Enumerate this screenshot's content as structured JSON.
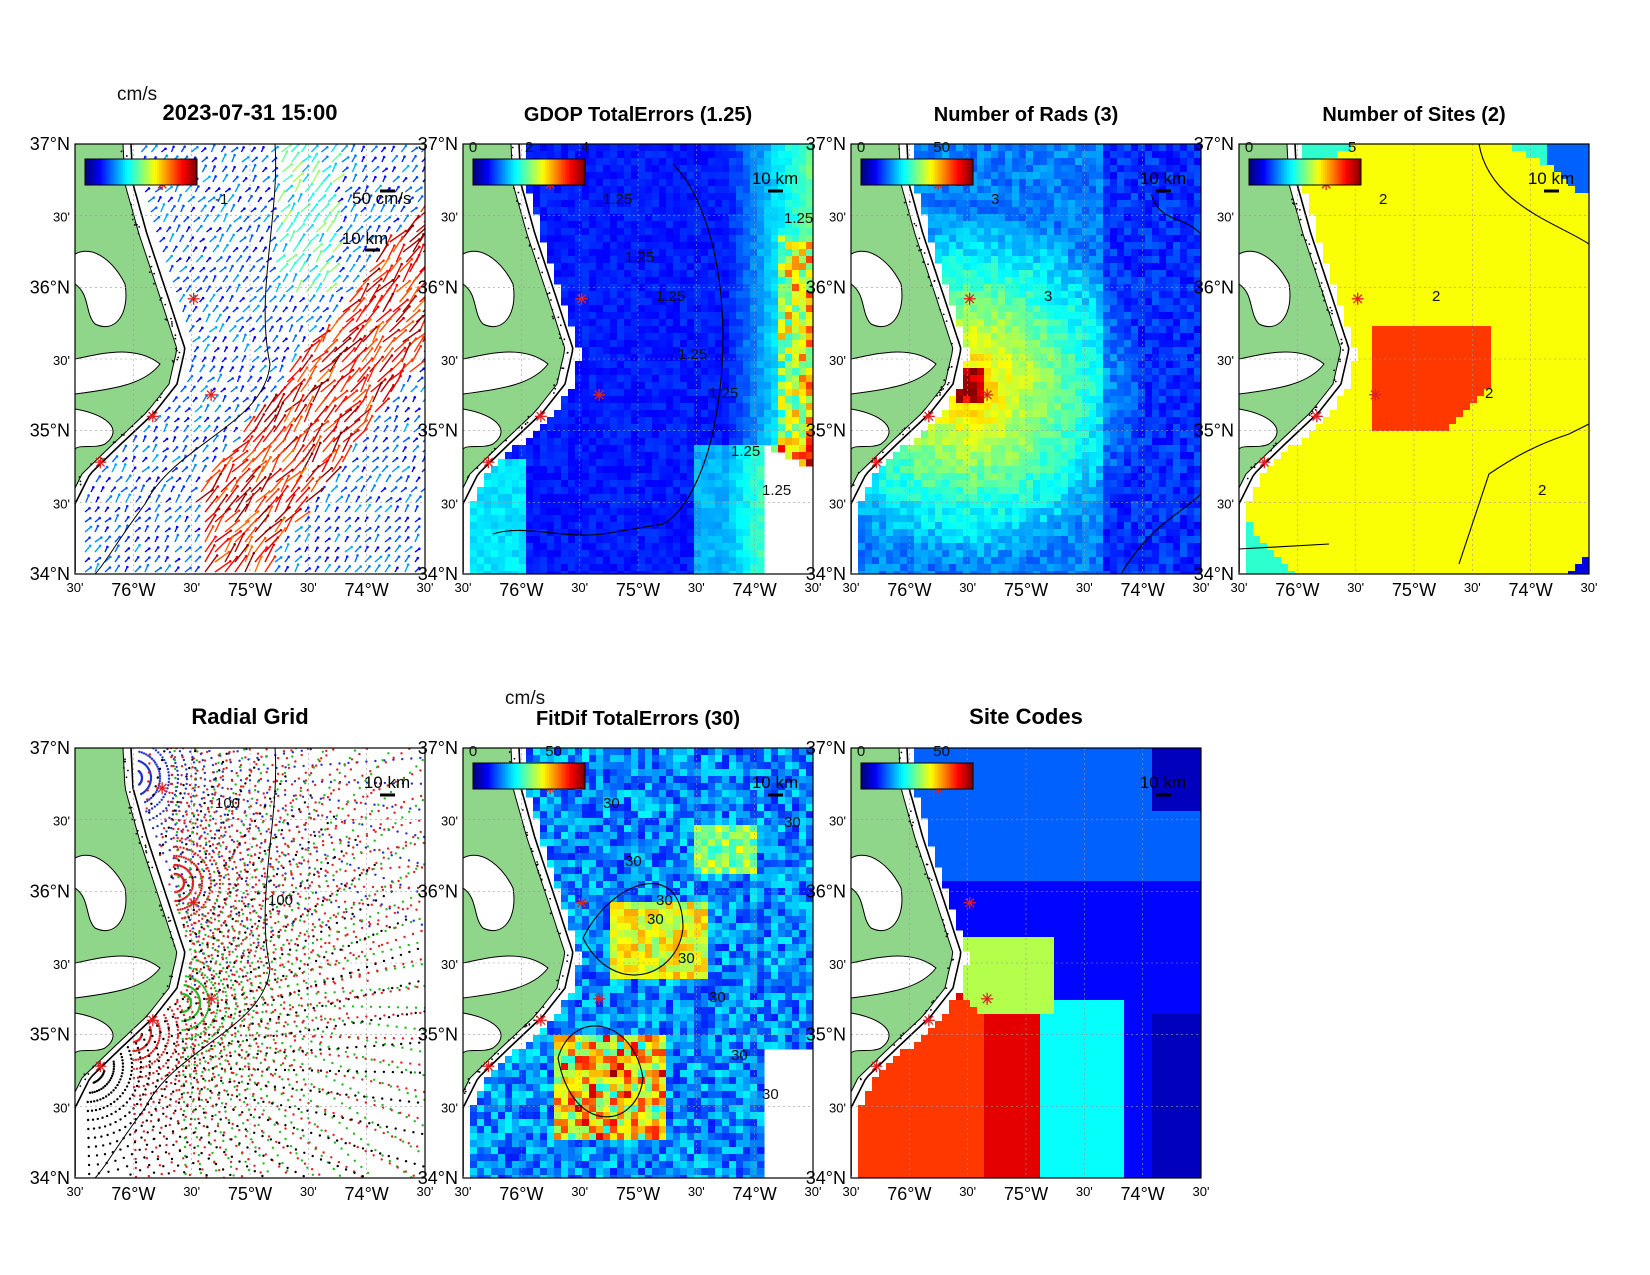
{
  "figure": {
    "panels": [
      {
        "id": "currents",
        "title": "2023-07-31 15:00",
        "kind": "vectors",
        "colorbar": {
          "unit": "cm/s",
          "ticks": []
        },
        "vector_scale_label": "50 cm/s",
        "scale_bar_label": "10 km",
        "contour_labels": [
          "-1"
        ],
        "colors": {
          "land": "#8fd58a",
          "coast": "#000000"
        }
      },
      {
        "id": "gdop",
        "title": "GDOP TotalErrors (1.25)",
        "kind": "field",
        "colorbar": {
          "unit": "",
          "ticks": [
            "0",
            "2",
            "4"
          ]
        },
        "scale_bar_label": "10 km",
        "contour_labels": [
          "1.25",
          "1.25",
          "1.25",
          "1.25",
          "1.25",
          "1.25",
          "1.25",
          "1.25"
        ]
      },
      {
        "id": "nrads",
        "title": "Number of Rads (3)",
        "kind": "field",
        "colorbar": {
          "unit": "",
          "ticks": [
            "0",
            "50"
          ]
        },
        "scale_bar_label": "10 km",
        "contour_labels": [
          "3",
          "3"
        ]
      },
      {
        "id": "nsites",
        "title": "Number of Sites (2)",
        "kind": "field",
        "colorbar": {
          "unit": "",
          "ticks": [
            "0",
            "5"
          ]
        },
        "scale_bar_label": "10 km",
        "contour_labels": [
          "2",
          "2",
          "2",
          "2"
        ]
      },
      {
        "id": "radial",
        "title": "Radial Grid",
        "kind": "grid",
        "colorbar": null,
        "scale_bar_label": "10 km",
        "contour_labels": [
          "100",
          "100"
        ]
      },
      {
        "id": "fitdif",
        "title": "FitDif TotalErrors (30)",
        "kind": "field",
        "colorbar": {
          "unit": "cm/s",
          "ticks": [
            "0",
            "50"
          ]
        },
        "scale_bar_label": "10 km",
        "contour_labels": [
          "30",
          "30",
          "30",
          "30",
          "30",
          "30",
          "30",
          "30",
          "30"
        ]
      },
      {
        "id": "sitecodes",
        "title": "Site Codes",
        "kind": "field",
        "colorbar": {
          "unit": "",
          "ticks": [
            "0",
            "50"
          ]
        },
        "scale_bar_label": "10 km",
        "contour_labels": []
      }
    ],
    "axes": {
      "lat_labels": [
        "37°N",
        "30'",
        "36°N",
        "30'",
        "35°N",
        "30'",
        "34°N"
      ],
      "lon_labels": [
        "30'",
        "76°W",
        "30'",
        "75°W",
        "30'",
        "74°W",
        "30'"
      ]
    },
    "map_extent": {
      "lat": [
        34,
        37
      ],
      "lon": [
        -76.75,
        -73.75
      ]
    },
    "radar_sites": [
      {
        "lon": -76.02,
        "lat": 36.72
      },
      {
        "lon": -75.75,
        "lat": 35.92
      },
      {
        "lon": -75.6,
        "lat": 35.25
      },
      {
        "lon": -76.1,
        "lat": 35.1
      },
      {
        "lon": -76.55,
        "lat": 34.78
      }
    ]
  }
}
